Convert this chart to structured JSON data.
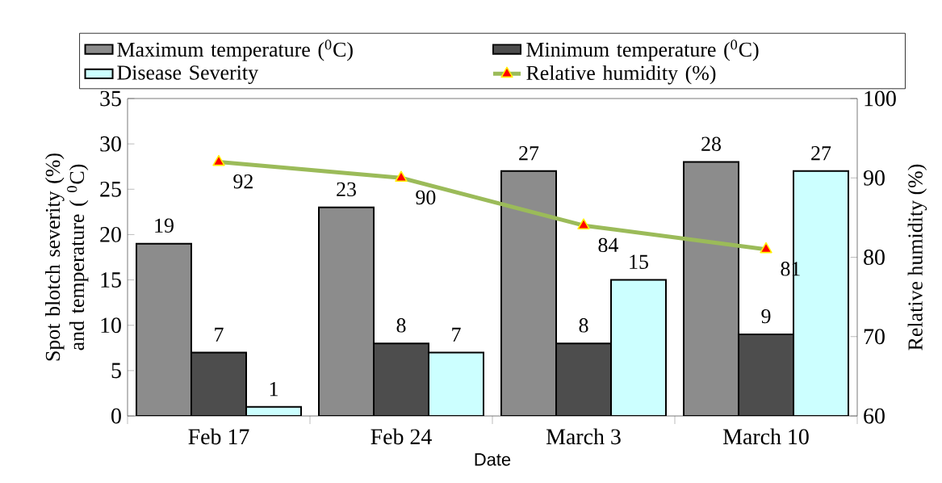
{
  "chart_data": {
    "type": "bar",
    "categories": [
      "Feb 17",
      "Feb  24",
      "March 3",
      "March 10"
    ],
    "xlabel": "Date",
    "ylabel": "Spot blotch severity (%) and temperature ( $^{0}$C)",
    "y2label": "Relative humidity (%)",
    "ylim": [
      0,
      35
    ],
    "yticks": [
      0,
      5,
      10,
      15,
      20,
      25,
      30,
      35
    ],
    "y2lim": [
      60,
      100
    ],
    "y2ticks": [
      60,
      70,
      80,
      90,
      100
    ],
    "legend": "top",
    "marker": "triangle",
    "data_labels": true,
    "series": [
      {
        "name": "Maximum temperature ($^{0}$C)",
        "color": "#8c8c8c",
        "values": [
          19,
          23,
          27,
          28
        ]
      },
      {
        "name": "Minimum temperature ($^{0}$C)",
        "color": "#4d4d4d",
        "values": [
          7,
          8,
          8,
          9
        ]
      },
      {
        "name": "Disease Severity",
        "color": "#ccffff",
        "values": [
          1,
          7,
          15,
          27
        ]
      },
      {
        "name": "Relative humidity (%)",
        "type": "line",
        "axis": "y2",
        "color": "#9bbb59",
        "values": [
          92,
          90,
          84,
          81
        ]
      }
    ]
  }
}
